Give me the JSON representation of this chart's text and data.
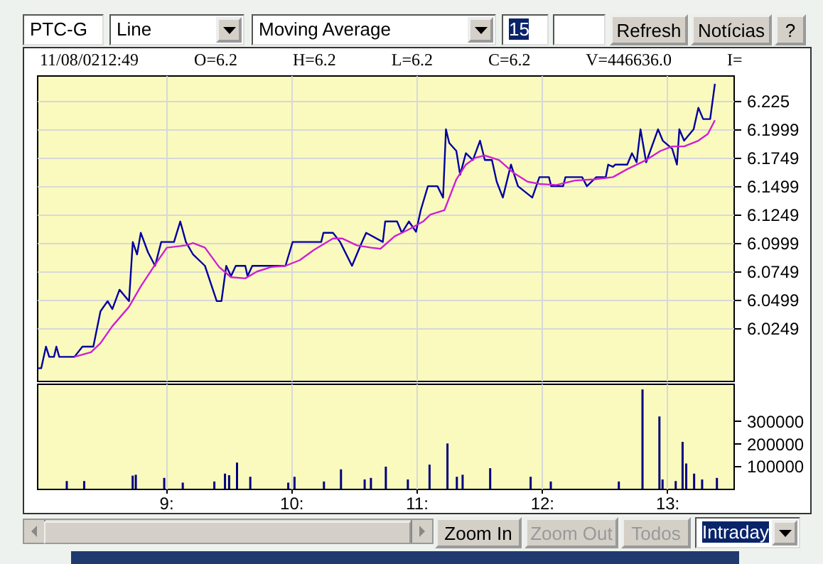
{
  "chart_data": [
    {
      "type": "other",
      "annotations": [
        "PTC-G",
        "Line",
        "Moving Average",
        "15",
        "Refresh",
        "Notícias",
        "?"
      ]
    },
    {
      "type": "line",
      "subtitle": "11/08/0212:49 O=6.2 H=6.2 L=6.2 C=6.2 V=446636.0 I=",
      "xlim": [
        7.97,
        13.53
      ],
      "xticks": [
        {
          "value": 9,
          "label": null
        },
        {
          "value": 10,
          "label": null
        },
        {
          "value": 11,
          "label": null
        },
        {
          "value": 12,
          "label": null
        },
        {
          "value": 13,
          "label": null
        }
      ],
      "ylim": [
        5.979,
        6.2475
      ],
      "yticks": [
        6.0249,
        6.0499,
        6.0749,
        6.0999,
        6.1249,
        6.1499,
        6.1749,
        6.1999,
        6.225
      ],
      "grid": true,
      "tick_labels": "y",
      "series": [
        {
          "color": "#0000a0",
          "x": [
            7.977,
            8.004,
            8.042,
            8.068,
            8.106,
            8.125,
            8.148,
            8.269,
            8.333,
            8.42,
            8.477,
            8.534,
            8.572,
            8.629,
            8.705,
            8.735,
            8.769,
            8.799,
            8.856,
            8.913,
            8.962,
            9.064,
            9.114,
            9.159,
            9.216,
            9.311,
            9.405,
            9.443,
            9.481,
            9.519,
            9.557,
            9.633,
            9.651,
            9.689,
            9.954,
            10.011,
            10.049,
            10.239,
            10.257,
            10.333,
            10.39,
            10.485,
            10.561,
            10.598,
            10.731,
            10.75,
            10.845,
            10.883,
            10.939,
            10.996,
            11.034,
            11.091,
            11.167,
            11.212,
            11.235,
            11.261,
            11.318,
            11.348,
            11.394,
            11.45,
            11.507,
            11.545,
            11.602,
            11.64,
            11.689,
            11.754,
            11.81,
            11.924,
            11.981,
            12.057,
            12.075,
            12.17,
            12.189,
            12.322,
            12.36,
            12.435,
            12.511,
            12.53,
            12.568,
            12.587,
            12.682,
            12.72,
            12.757,
            12.788,
            12.833,
            12.928,
            12.966,
            13.041,
            13.079,
            13.098,
            13.136,
            13.212,
            13.25,
            13.288,
            13.344,
            13.382
          ],
          "values": [
            5.99,
            5.99,
            6.009,
            6.0,
            6.0,
            6.009,
            6.0,
            6.0,
            6.009,
            6.009,
            6.04,
            6.049,
            6.042,
            6.059,
            6.049,
            6.101,
            6.09,
            6.109,
            6.092,
            6.08,
            6.101,
            6.101,
            6.119,
            6.101,
            6.09,
            6.08,
            6.049,
            6.049,
            6.08,
            6.071,
            6.08,
            6.08,
            6.071,
            6.08,
            6.08,
            6.101,
            6.101,
            6.101,
            6.109,
            6.109,
            6.101,
            6.08,
            6.1,
            6.109,
            6.101,
            6.119,
            6.119,
            6.109,
            6.119,
            6.11,
            6.129,
            6.15,
            6.15,
            6.14,
            6.2,
            6.188,
            6.181,
            6.16,
            6.179,
            6.173,
            6.19,
            6.173,
            6.173,
            6.154,
            6.14,
            6.169,
            6.15,
            6.14,
            6.158,
            6.158,
            6.15,
            6.15,
            6.158,
            6.158,
            6.15,
            6.158,
            6.158,
            6.169,
            6.167,
            6.169,
            6.169,
            6.179,
            6.171,
            6.2,
            6.171,
            6.2,
            6.19,
            6.183,
            6.169,
            6.2,
            6.19,
            6.2,
            6.219,
            6.209,
            6.209,
            6.24
          ]
        },
        {
          "color": "#d020d0",
          "x": [
            8.269,
            8.401,
            8.477,
            8.572,
            8.705,
            8.799,
            8.913,
            9.007,
            9.159,
            9.216,
            9.311,
            9.424,
            9.519,
            9.633,
            9.727,
            9.841,
            9.954,
            10.068,
            10.182,
            10.333,
            10.409,
            10.523,
            10.636,
            10.712,
            10.826,
            10.939,
            11.053,
            11.11,
            11.223,
            11.318,
            11.394,
            11.469,
            11.545,
            11.659,
            11.772,
            11.886,
            11.981,
            12.113,
            12.265,
            12.416,
            12.568,
            12.682,
            12.833,
            12.947,
            13.041,
            13.136,
            13.25,
            13.326,
            13.382
          ],
          "values": [
            6.0,
            6.004,
            6.012,
            6.027,
            6.044,
            6.062,
            6.081,
            6.096,
            6.098,
            6.1,
            6.096,
            6.079,
            6.07,
            6.069,
            6.075,
            6.079,
            6.08,
            6.085,
            6.094,
            6.104,
            6.104,
            6.098,
            6.096,
            6.095,
            6.106,
            6.112,
            6.119,
            6.125,
            6.129,
            6.156,
            6.169,
            6.175,
            6.177,
            6.173,
            6.162,
            6.154,
            6.152,
            6.151,
            6.155,
            6.156,
            6.158,
            6.165,
            6.173,
            6.181,
            6.185,
            6.185,
            6.19,
            6.196,
            6.208
          ]
        }
      ]
    },
    {
      "type": "bar",
      "color": "#000080",
      "xlim": [
        7.97,
        13.53
      ],
      "xticks": [
        {
          "value": 9,
          "label": "9:"
        },
        {
          "value": 10,
          "label": "10:"
        },
        {
          "value": 11,
          "label": "11:"
        },
        {
          "value": 12,
          "label": "12:"
        },
        {
          "value": 13,
          "label": "13:"
        }
      ],
      "ylim": [
        0,
        467000
      ],
      "yticks": [
        100000,
        200000,
        300000
      ],
      "grid": "x",
      "x": [
        8.208,
        8.347,
        8.734,
        8.759,
        8.986,
        9.134,
        9.386,
        9.471,
        9.504,
        9.567,
        9.673,
        9.976,
        10.026,
        10.261,
        10.397,
        10.586,
        10.636,
        10.755,
        10.931,
        11.104,
        11.247,
        11.322,
        11.368,
        11.588,
        11.911,
        12.072,
        12.615,
        12.804,
        12.939,
        12.964,
        13.069,
        13.124,
        13.153,
        13.216,
        13.28,
        13.398
      ],
      "values": [
        34000,
        34000,
        58000,
        62000,
        48000,
        27000,
        32000,
        67000,
        60000,
        116000,
        53000,
        27000,
        53000,
        32000,
        86000,
        41000,
        48000,
        98000,
        41000,
        107000,
        201000,
        53000,
        62000,
        91000,
        53000,
        32000,
        32000,
        441000,
        321000,
        41000,
        34000,
        208000,
        112000,
        67000,
        41000,
        48000
      ]
    },
    {
      "type": "other",
      "annotations": [
        "Zoom In",
        "Zoom Out",
        "Todos",
        "Intraday"
      ]
    }
  ]
}
